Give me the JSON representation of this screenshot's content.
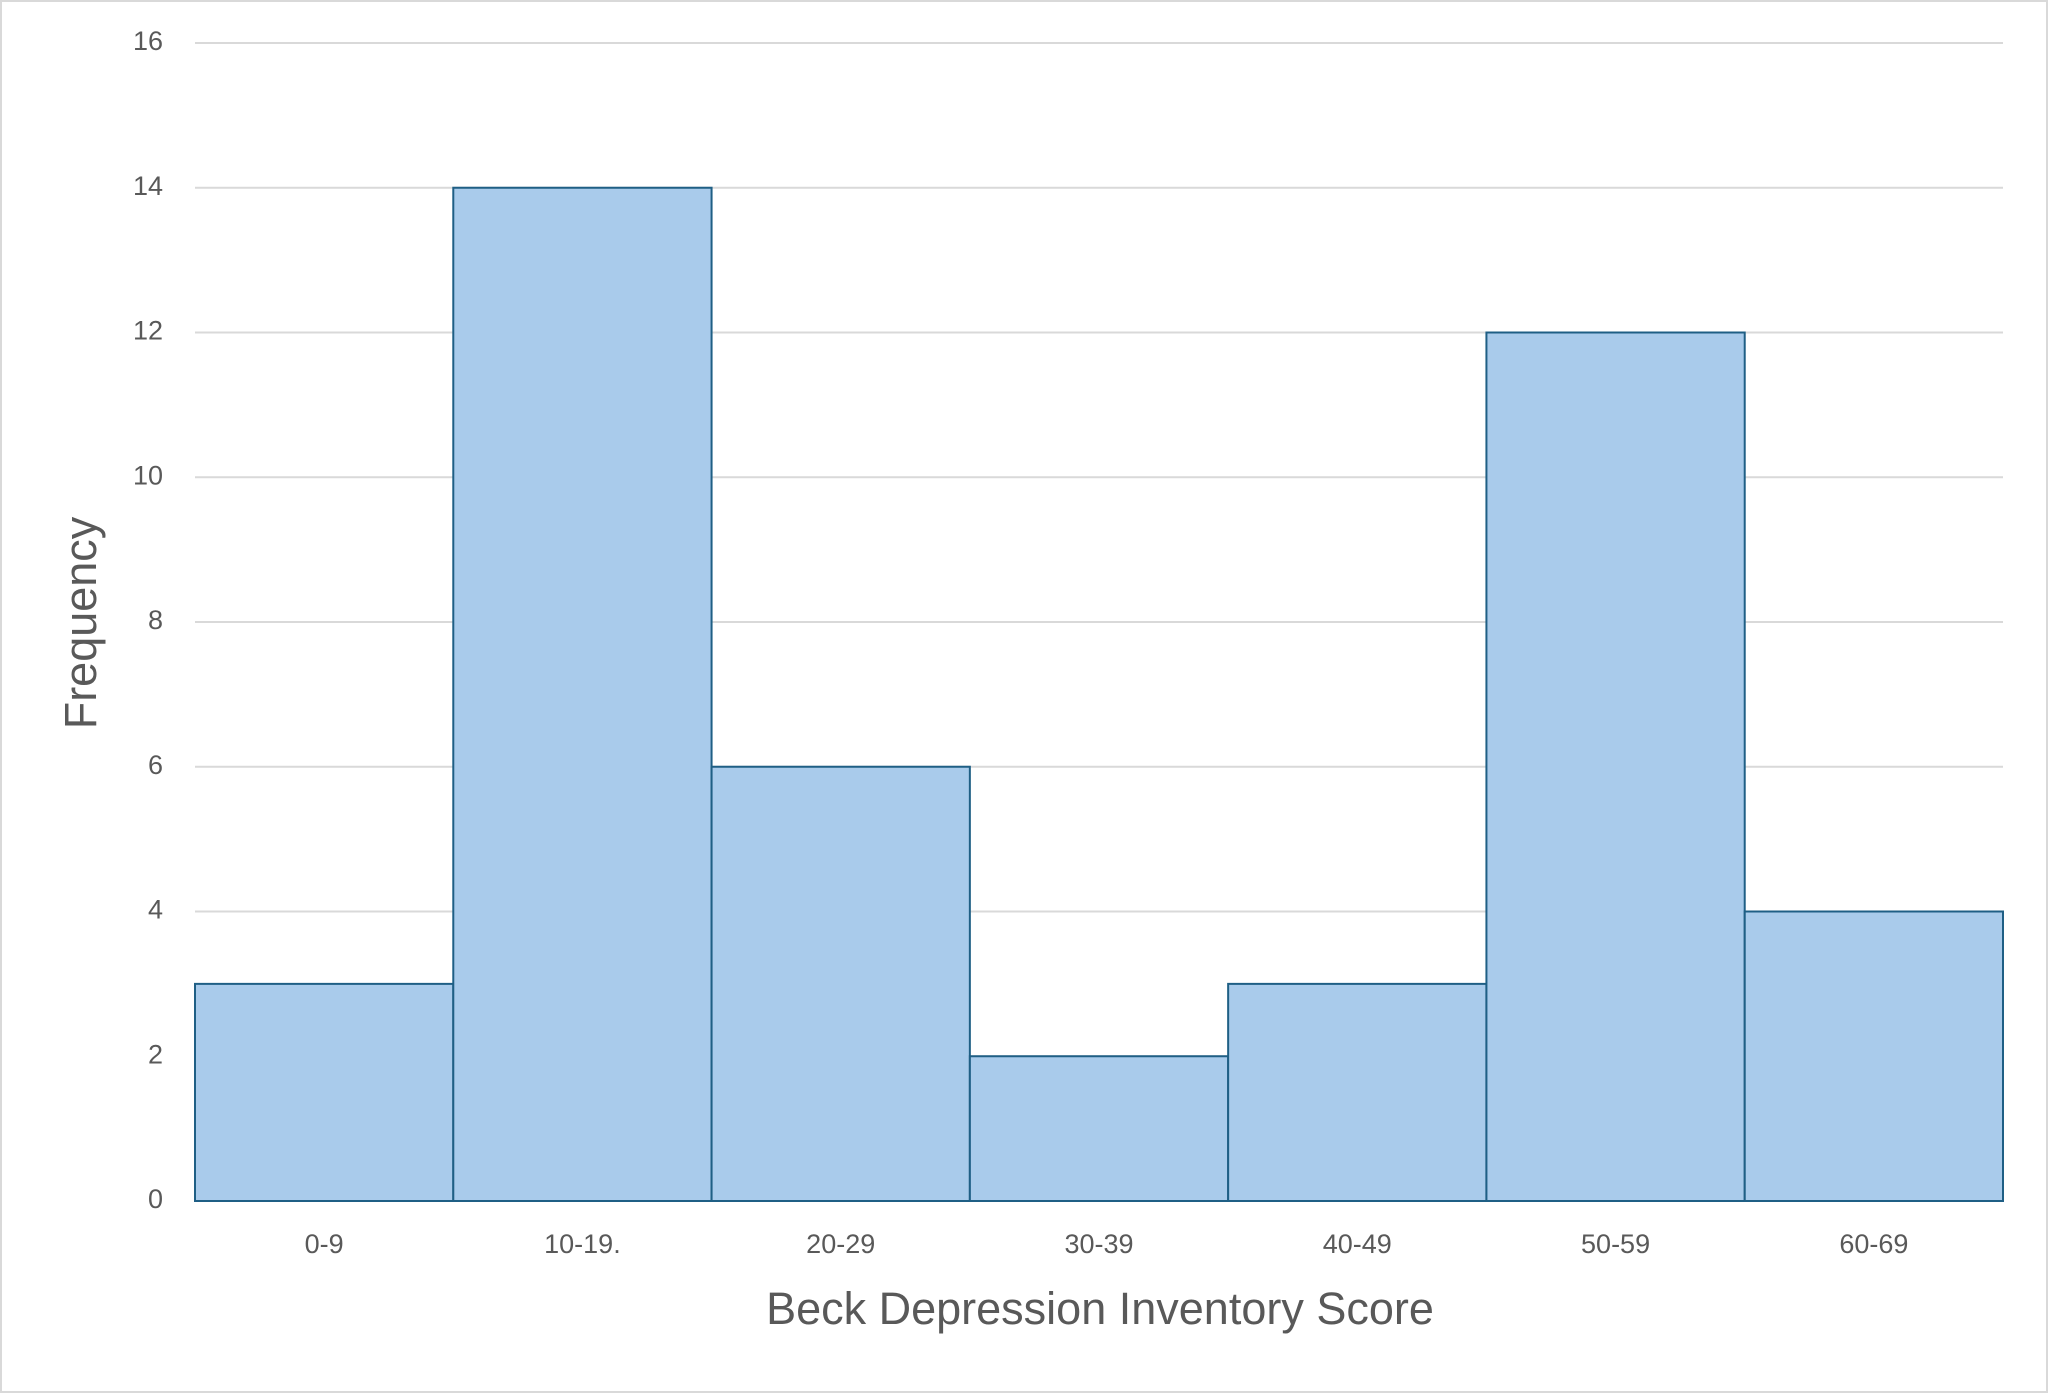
{
  "chart_data": {
    "type": "bar",
    "x_label": "Beck Depression Inventory Score",
    "y_label": "Frequency",
    "categories": [
      "0-9",
      "10-19.",
      "20-29",
      "30-39",
      "40-49",
      "50-59",
      "60-69"
    ],
    "values": [
      3,
      14,
      6,
      2,
      3,
      12,
      4
    ],
    "color": "#a9cbeb",
    "edge_color": "#1f5f85",
    "ylim": [
      0,
      16
    ],
    "yticks": [
      0,
      2,
      4,
      6,
      8,
      10,
      12,
      14,
      16
    ],
    "grid": true
  }
}
